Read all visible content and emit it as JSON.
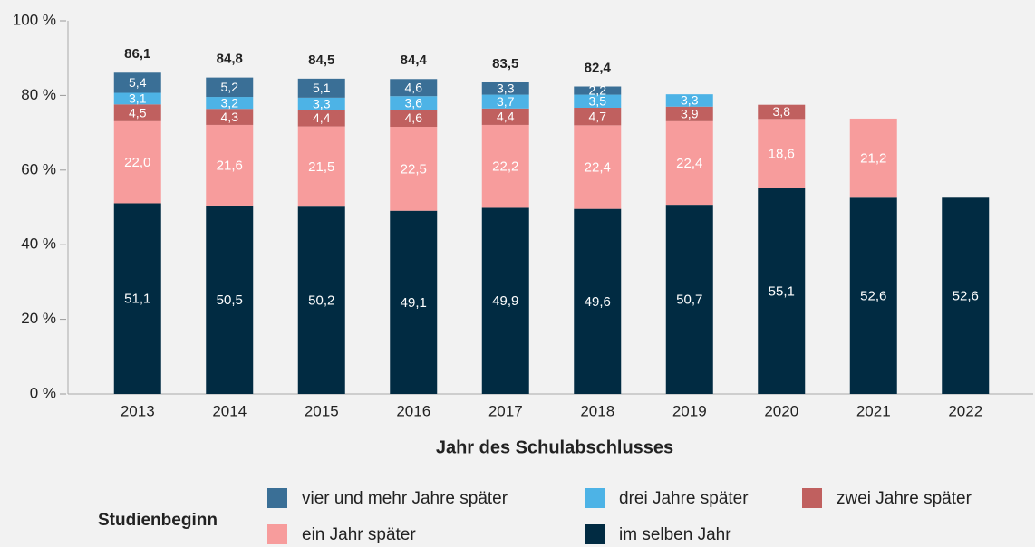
{
  "chart_data": {
    "type": "stacked_bar",
    "x_label": "Jahr des Schulabschlusses",
    "legend_title": "Studienbeginn",
    "categories": [
      "2013",
      "2014",
      "2015",
      "2016",
      "2017",
      "2018",
      "2019",
      "2020",
      "2021",
      "2022"
    ],
    "series": [
      {
        "name": "vier und mehr Jahre später",
        "color": "#3a6f96",
        "values": [
          5.4,
          5.2,
          5.1,
          4.6,
          3.3,
          2.2,
          null,
          null,
          null,
          null
        ],
        "value_labels": [
          "5,4",
          "5,2",
          "5,1",
          "4,6",
          "3,3",
          "2,2",
          null,
          null,
          null,
          null
        ]
      },
      {
        "name": "drei Jahre später",
        "color": "#4db3e6",
        "values": [
          3.1,
          3.2,
          3.3,
          3.6,
          3.7,
          3.5,
          3.3,
          null,
          null,
          null
        ],
        "value_labels": [
          "3,1",
          "3,2",
          "3,3",
          "3,6",
          "3,7",
          "3,5",
          "3,3",
          null,
          null,
          null
        ]
      },
      {
        "name": "zwei Jahre später",
        "color": "#c0605f",
        "values": [
          4.5,
          4.3,
          4.4,
          4.6,
          4.4,
          4.7,
          3.9,
          3.8,
          null,
          null
        ],
        "value_labels": [
          "4,5",
          "4,3",
          "4,4",
          "4,6",
          "4,4",
          "4,7",
          "3,9",
          "3,8",
          null,
          null
        ]
      },
      {
        "name": "ein Jahr später",
        "color": "#f79c9c",
        "values": [
          22.0,
          21.6,
          21.5,
          22.5,
          22.2,
          22.4,
          22.4,
          18.6,
          21.2,
          null
        ],
        "value_labels": [
          "22,0",
          "21,6",
          "21,5",
          "22,5",
          "22,2",
          "22,4",
          "22,4",
          "18,6",
          "21,2",
          null
        ]
      },
      {
        "name": "im selben Jahr",
        "color": "#012b42",
        "values": [
          51.1,
          50.5,
          50.2,
          49.1,
          49.9,
          49.6,
          50.7,
          55.1,
          52.6,
          52.6
        ],
        "value_labels": [
          "51,1",
          "50,5",
          "50,2",
          "49,1",
          "49,9",
          "49,6",
          "50,7",
          "55,1",
          "52,6",
          "52,6"
        ]
      }
    ],
    "totals": [
      86.1,
      84.8,
      84.5,
      84.4,
      83.5,
      82.4,
      null,
      null,
      null,
      null
    ],
    "total_labels": [
      "86,1",
      "84,8",
      "84,5",
      "84,4",
      "83,5",
      "82,4",
      null,
      null,
      null,
      null
    ],
    "ylim": [
      0,
      100
    ],
    "yticks": [
      {
        "value": 0,
        "label": "0 %"
      },
      {
        "value": 20,
        "label": "20 %"
      },
      {
        "value": 40,
        "label": "40 %"
      },
      {
        "value": 60,
        "label": "60 %"
      },
      {
        "value": 80,
        "label": "80 %"
      },
      {
        "value": 100,
        "label": "100 %"
      }
    ],
    "grid": false
  }
}
